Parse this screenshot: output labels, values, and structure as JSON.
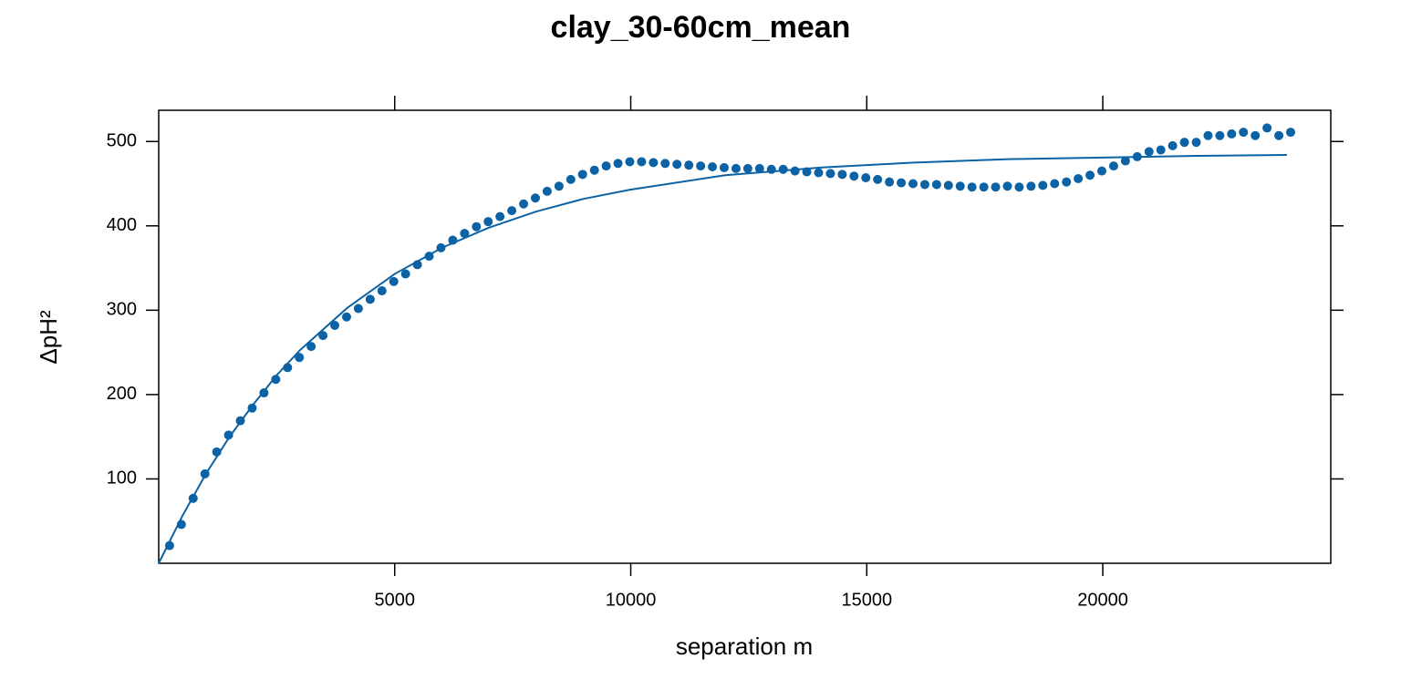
{
  "chart_data": {
    "type": "scatter",
    "title": "clay_30-60cm_mean",
    "x_label": "separation m",
    "y_label": "ΔpH²",
    "xlim": [
      0,
      24830
    ],
    "xticks": [
      5000,
      10000,
      15000,
      20000
    ],
    "ylim": [
      0,
      537
    ],
    "yticks": [
      100,
      200,
      300,
      400,
      500
    ],
    "series": [
      {
        "type": "scatter",
        "color": "#0b62a4",
        "x": [
          230,
          480,
          730,
          980,
          1230,
          1480,
          1730,
          1980,
          2230,
          2480,
          2730,
          2980,
          3230,
          3480,
          3730,
          3980,
          4230,
          4480,
          4730,
          4980,
          5230,
          5480,
          5730,
          5980,
          6230,
          6480,
          6730,
          6980,
          7230,
          7480,
          7730,
          7980,
          8230,
          8480,
          8730,
          8980,
          9230,
          9480,
          9730,
          9980,
          10230,
          10480,
          10730,
          10980,
          11230,
          11480,
          11730,
          11980,
          12230,
          12480,
          12730,
          12980,
          13230,
          13480,
          13730,
          13980,
          14230,
          14480,
          14730,
          14980,
          15230,
          15480,
          15730,
          15980,
          16230,
          16480,
          16730,
          16980,
          17230,
          17480,
          17730,
          17980,
          18230,
          18480,
          18730,
          18980,
          19230,
          19480,
          19730,
          19980,
          20230,
          20480,
          20730,
          20980,
          21230,
          21480,
          21730,
          21980,
          22230,
          22480,
          22730,
          22980,
          23230,
          23480,
          23730,
          23980
        ],
        "values": [
          21,
          46,
          77,
          106,
          132,
          152,
          169,
          184,
          202,
          218,
          232,
          244,
          257,
          270,
          282,
          292,
          302,
          313,
          323,
          334,
          343,
          354,
          364,
          374,
          383,
          391,
          399,
          405,
          411,
          418,
          426,
          433,
          441,
          447,
          455,
          461,
          466,
          471,
          474,
          476,
          476,
          475,
          474,
          473,
          472,
          471,
          470,
          469,
          468,
          468,
          468,
          467,
          467,
          465,
          464,
          463,
          462,
          461,
          459,
          457,
          455,
          452,
          451,
          450,
          449,
          449,
          448,
          447,
          446,
          446,
          446,
          447,
          446,
          447,
          448,
          450,
          452,
          456,
          460,
          465,
          471,
          477,
          482,
          488,
          490,
          495,
          499,
          499,
          507,
          507,
          509,
          511,
          507,
          516,
          507,
          511
        ]
      },
      {
        "type": "line",
        "color": "#0b62a4",
        "x": [
          0,
          500,
          1000,
          1500,
          2000,
          2500,
          3000,
          4000,
          5000,
          6000,
          7000,
          8000,
          9000,
          10000,
          12000,
          14000,
          16000,
          18000,
          20000,
          22000,
          23900
        ],
        "values": [
          0,
          56,
          106,
          150,
          188,
          223,
          253,
          303,
          343,
          374,
          398,
          417,
          432,
          443,
          460,
          469,
          475,
          479,
          481,
          483,
          484
        ]
      }
    ]
  }
}
